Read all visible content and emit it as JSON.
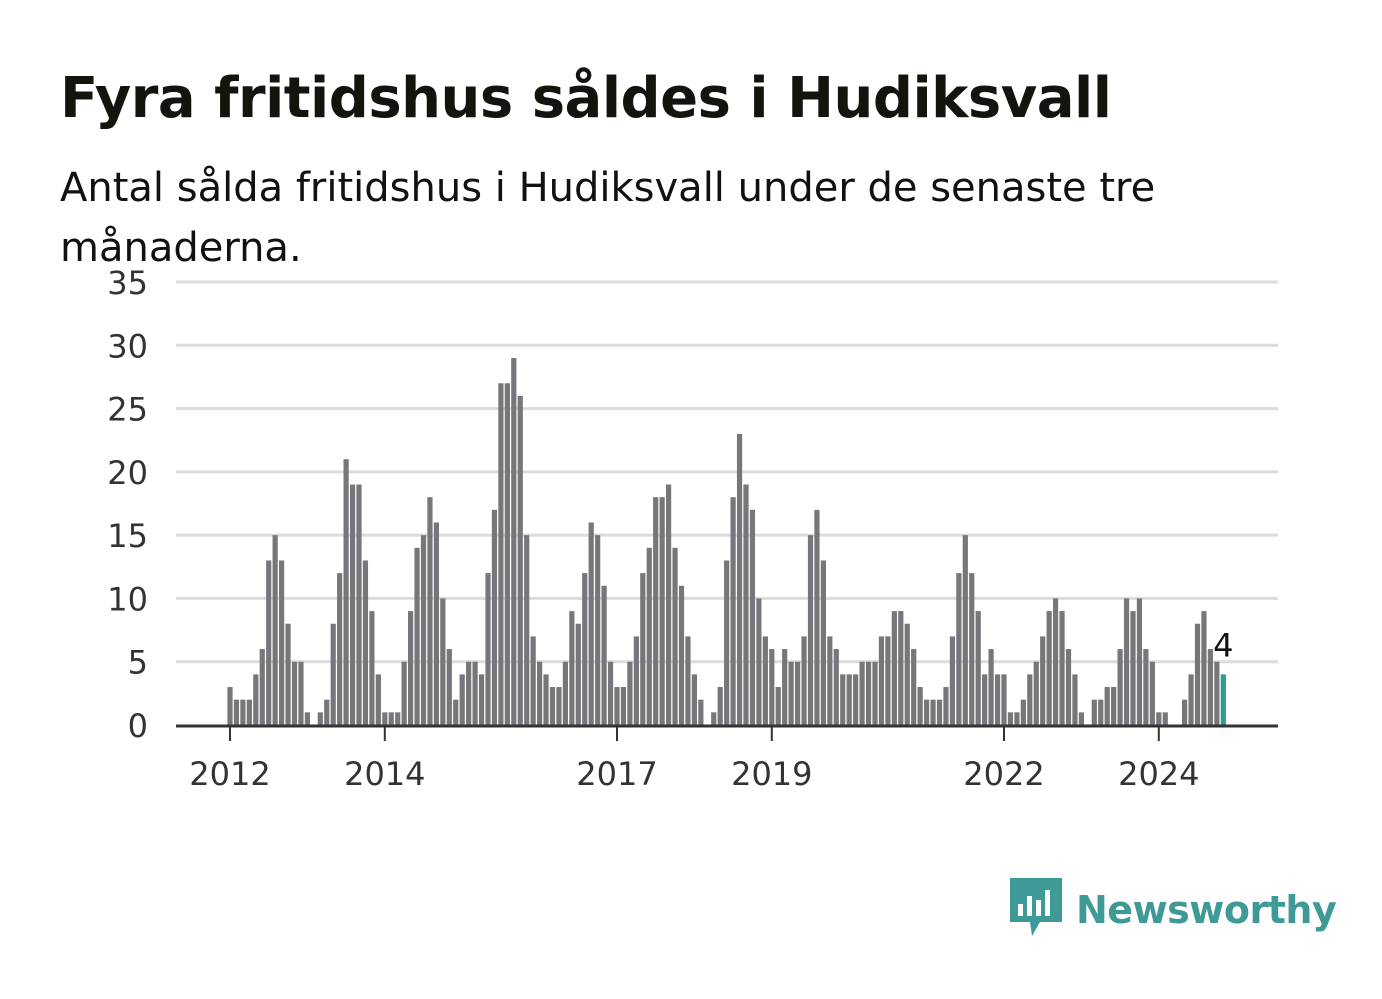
{
  "title": "Fyra fritidshus såldes i Hudiksvall",
  "subtitle": "Antal sålda fritidshus i Hudiksvall under de senaste tre månaderna.",
  "brand": {
    "name": "Newsworthy",
    "color": "#3f9a97",
    "icon": "chat-bar-chart-icon"
  },
  "chart_data": {
    "type": "bar",
    "title": "Fyra fritidshus såldes i Hudiksvall",
    "xlabel": "",
    "ylabel": "",
    "ylim": [
      0,
      35
    ],
    "yticks": [
      0,
      5,
      10,
      15,
      20,
      25,
      30,
      35
    ],
    "grid": true,
    "bar_color": "#77767b",
    "highlight_color": "#2a9d8f",
    "x_tick_labels": [
      {
        "label": "2012",
        "index": 0
      },
      {
        "label": "2014",
        "index": 24
      },
      {
        "label": "2017",
        "index": 60
      },
      {
        "label": "2019",
        "index": 84
      },
      {
        "label": "2022",
        "index": 120
      },
      {
        "label": "2024",
        "index": 144
      }
    ],
    "last_value_label": "4",
    "values": [
      3,
      2,
      2,
      2,
      4,
      6,
      13,
      15,
      13,
      8,
      5,
      5,
      1,
      0,
      1,
      2,
      8,
      12,
      21,
      19,
      19,
      13,
      9,
      4,
      1,
      1,
      1,
      5,
      9,
      14,
      15,
      18,
      16,
      10,
      6,
      2,
      4,
      5,
      5,
      4,
      12,
      17,
      27,
      27,
      29,
      26,
      15,
      7,
      5,
      4,
      3,
      3,
      5,
      9,
      8,
      12,
      16,
      15,
      11,
      5,
      3,
      3,
      5,
      7,
      12,
      14,
      18,
      18,
      19,
      14,
      11,
      7,
      4,
      2,
      0,
      1,
      3,
      13,
      18,
      23,
      19,
      17,
      10,
      7,
      6,
      3,
      6,
      5,
      5,
      7,
      15,
      17,
      13,
      7,
      6,
      4,
      4,
      4,
      5,
      5,
      5,
      7,
      7,
      9,
      9,
      8,
      6,
      3,
      2,
      2,
      2,
      3,
      7,
      12,
      15,
      12,
      9,
      4,
      6,
      4,
      4,
      1,
      1,
      2,
      4,
      5,
      7,
      9,
      10,
      9,
      6,
      4,
      1,
      0,
      2,
      2,
      3,
      3,
      6,
      10,
      9,
      10,
      6,
      5,
      1,
      1,
      0,
      0,
      2,
      4,
      8,
      9,
      6,
      5,
      4
    ]
  }
}
